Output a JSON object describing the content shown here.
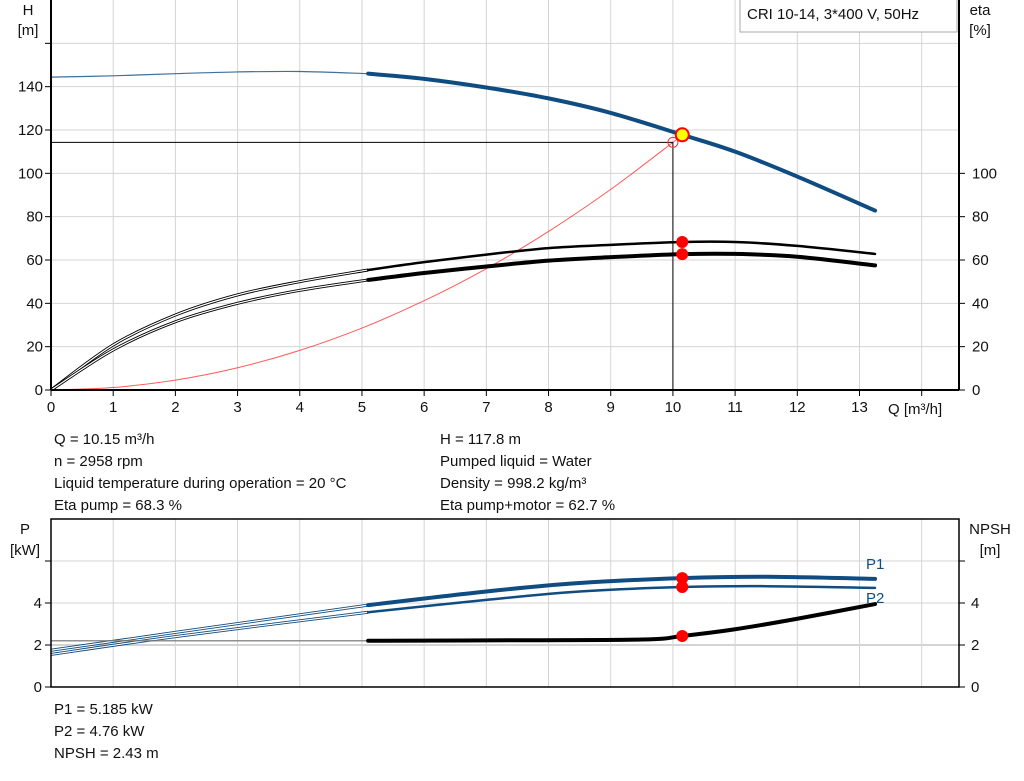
{
  "colors": {
    "head": "#0f4c81",
    "eta": "#000000",
    "system": "#ff3030",
    "duty_fill": "#ffff00",
    "marker": "#ff0000",
    "grid": "#d4d4d4",
    "power": "#0f4c81",
    "npsh": "#000000"
  },
  "legend_box": "CRI 10-14, 3*400 V, 50Hz",
  "info_top": {
    "left": [
      "Q = 10.15 m³/h",
      "n = 2958 rpm",
      "Liquid temperature during operation = 20 °C",
      "Eta pump = 68.3 %"
    ],
    "right": [
      "H = 117.8 m",
      "Pumped liquid = Water",
      "Density = 998.2 kg/m³",
      "Eta pump+motor = 62.7 %"
    ]
  },
  "info_bottom": [
    "P1 = 5.185 kW",
    "P2 = 4.76 kW",
    "NPSH = 2.43 m"
  ],
  "chart_data": [
    {
      "type": "line",
      "xlabel": "Q [m³/h]",
      "ylabel": "H\n[m]",
      "y2label": "eta\n[%]",
      "xlim": [
        0,
        14.6
      ],
      "ylim": [
        0,
        180
      ],
      "x_ticks": [
        0,
        1,
        2,
        3,
        4,
        5,
        6,
        7,
        8,
        9,
        10,
        11,
        12,
        13
      ],
      "y_ticks": [
        0,
        20,
        40,
        60,
        80,
        100,
        120,
        140
      ],
      "y2_ticks": [
        0,
        20,
        40,
        60,
        80,
        100
      ],
      "grid": true,
      "series": [
        {
          "key": "head",
          "axis": "H",
          "x": [
            0,
            1,
            2,
            3,
            4,
            5.1,
            6,
            7,
            8,
            9,
            10.15,
            11,
            12,
            13.25
          ],
          "y": [
            144.4,
            145,
            146,
            146.8,
            147,
            146,
            143.6,
            139.6,
            134.6,
            127.9,
            117.8,
            110,
            98.5,
            82.8
          ],
          "min_q_bold": 5.1
        },
        {
          "key": "eta_pump",
          "axis": "eta",
          "x": [
            0,
            1,
            2,
            3,
            4,
            5.1,
            6,
            7,
            8,
            9,
            10.15,
            11,
            12,
            13.25
          ],
          "y": [
            0,
            20.8,
            34.6,
            43.9,
            50,
            55.4,
            59,
            62.5,
            65.5,
            67,
            68.3,
            68.3,
            66.5,
            62.8
          ],
          "min_q_bold": 5.1
        },
        {
          "key": "eta_pump_motor",
          "axis": "eta",
          "x": [
            0,
            1,
            2,
            3,
            4,
            5.1,
            6,
            7,
            8,
            9,
            10.15,
            11,
            12,
            13.25
          ],
          "y": [
            0,
            18.5,
            31.5,
            40,
            46,
            50.8,
            54,
            57,
            59.7,
            61.3,
            62.7,
            62.8,
            61.5,
            57.5
          ],
          "min_q_bold": 5.1
        },
        {
          "key": "system",
          "axis": "H",
          "x": [
            0,
            1,
            2,
            3,
            4,
            5,
            6,
            7,
            8,
            9,
            10,
            10.15
          ],
          "y": [
            0,
            1.14,
            4.57,
            10.29,
            18.3,
            28.6,
            41.2,
            56,
            73.2,
            92.6,
            114.3,
            117.8
          ]
        }
      ],
      "duty_point": {
        "q": 10.15,
        "h": 117.8,
        "eta_pump": 68.3,
        "eta_pump_motor": 62.7
      },
      "reference_point": {
        "q": 10.0,
        "h": 114.3
      }
    },
    {
      "type": "line",
      "ylabel": "P\n[kW]",
      "y2label": "NPSH\n[m]",
      "xlim": [
        0,
        14.6
      ],
      "ylim": [
        0,
        8
      ],
      "y_ticks": [
        0,
        2,
        4
      ],
      "y2_ticks": [
        0,
        2,
        4
      ],
      "grid": true,
      "series": [
        {
          "key": "P1",
          "name": "P1",
          "x": [
            0,
            2,
            5.1,
            7,
            8.5,
            10.15,
            11.5,
            13.25
          ],
          "y": [
            1.75,
            2.6,
            3.9,
            4.55,
            4.95,
            5.185,
            5.25,
            5.15
          ],
          "min_q_bold": 5.1
        },
        {
          "key": "P2",
          "name": "P2",
          "x": [
            0,
            2,
            5.1,
            7,
            8.5,
            10.15,
            11.5,
            13.25
          ],
          "y": [
            1.55,
            2.4,
            3.56,
            4.15,
            4.55,
            4.76,
            4.8,
            4.72
          ],
          "min_q_bold": 5.1
        },
        {
          "key": "NPSH",
          "x": [
            0,
            5.1,
            7,
            9.5,
            10.15,
            11,
            12,
            13.25
          ],
          "y": [
            2.2,
            2.2,
            2.22,
            2.26,
            2.43,
            2.75,
            3.25,
            3.95
          ],
          "min_q_bold": 5.1
        }
      ],
      "duty_point": {
        "q": 10.15,
        "P1": 5.185,
        "P2": 4.76,
        "NPSH": 2.43
      }
    }
  ]
}
